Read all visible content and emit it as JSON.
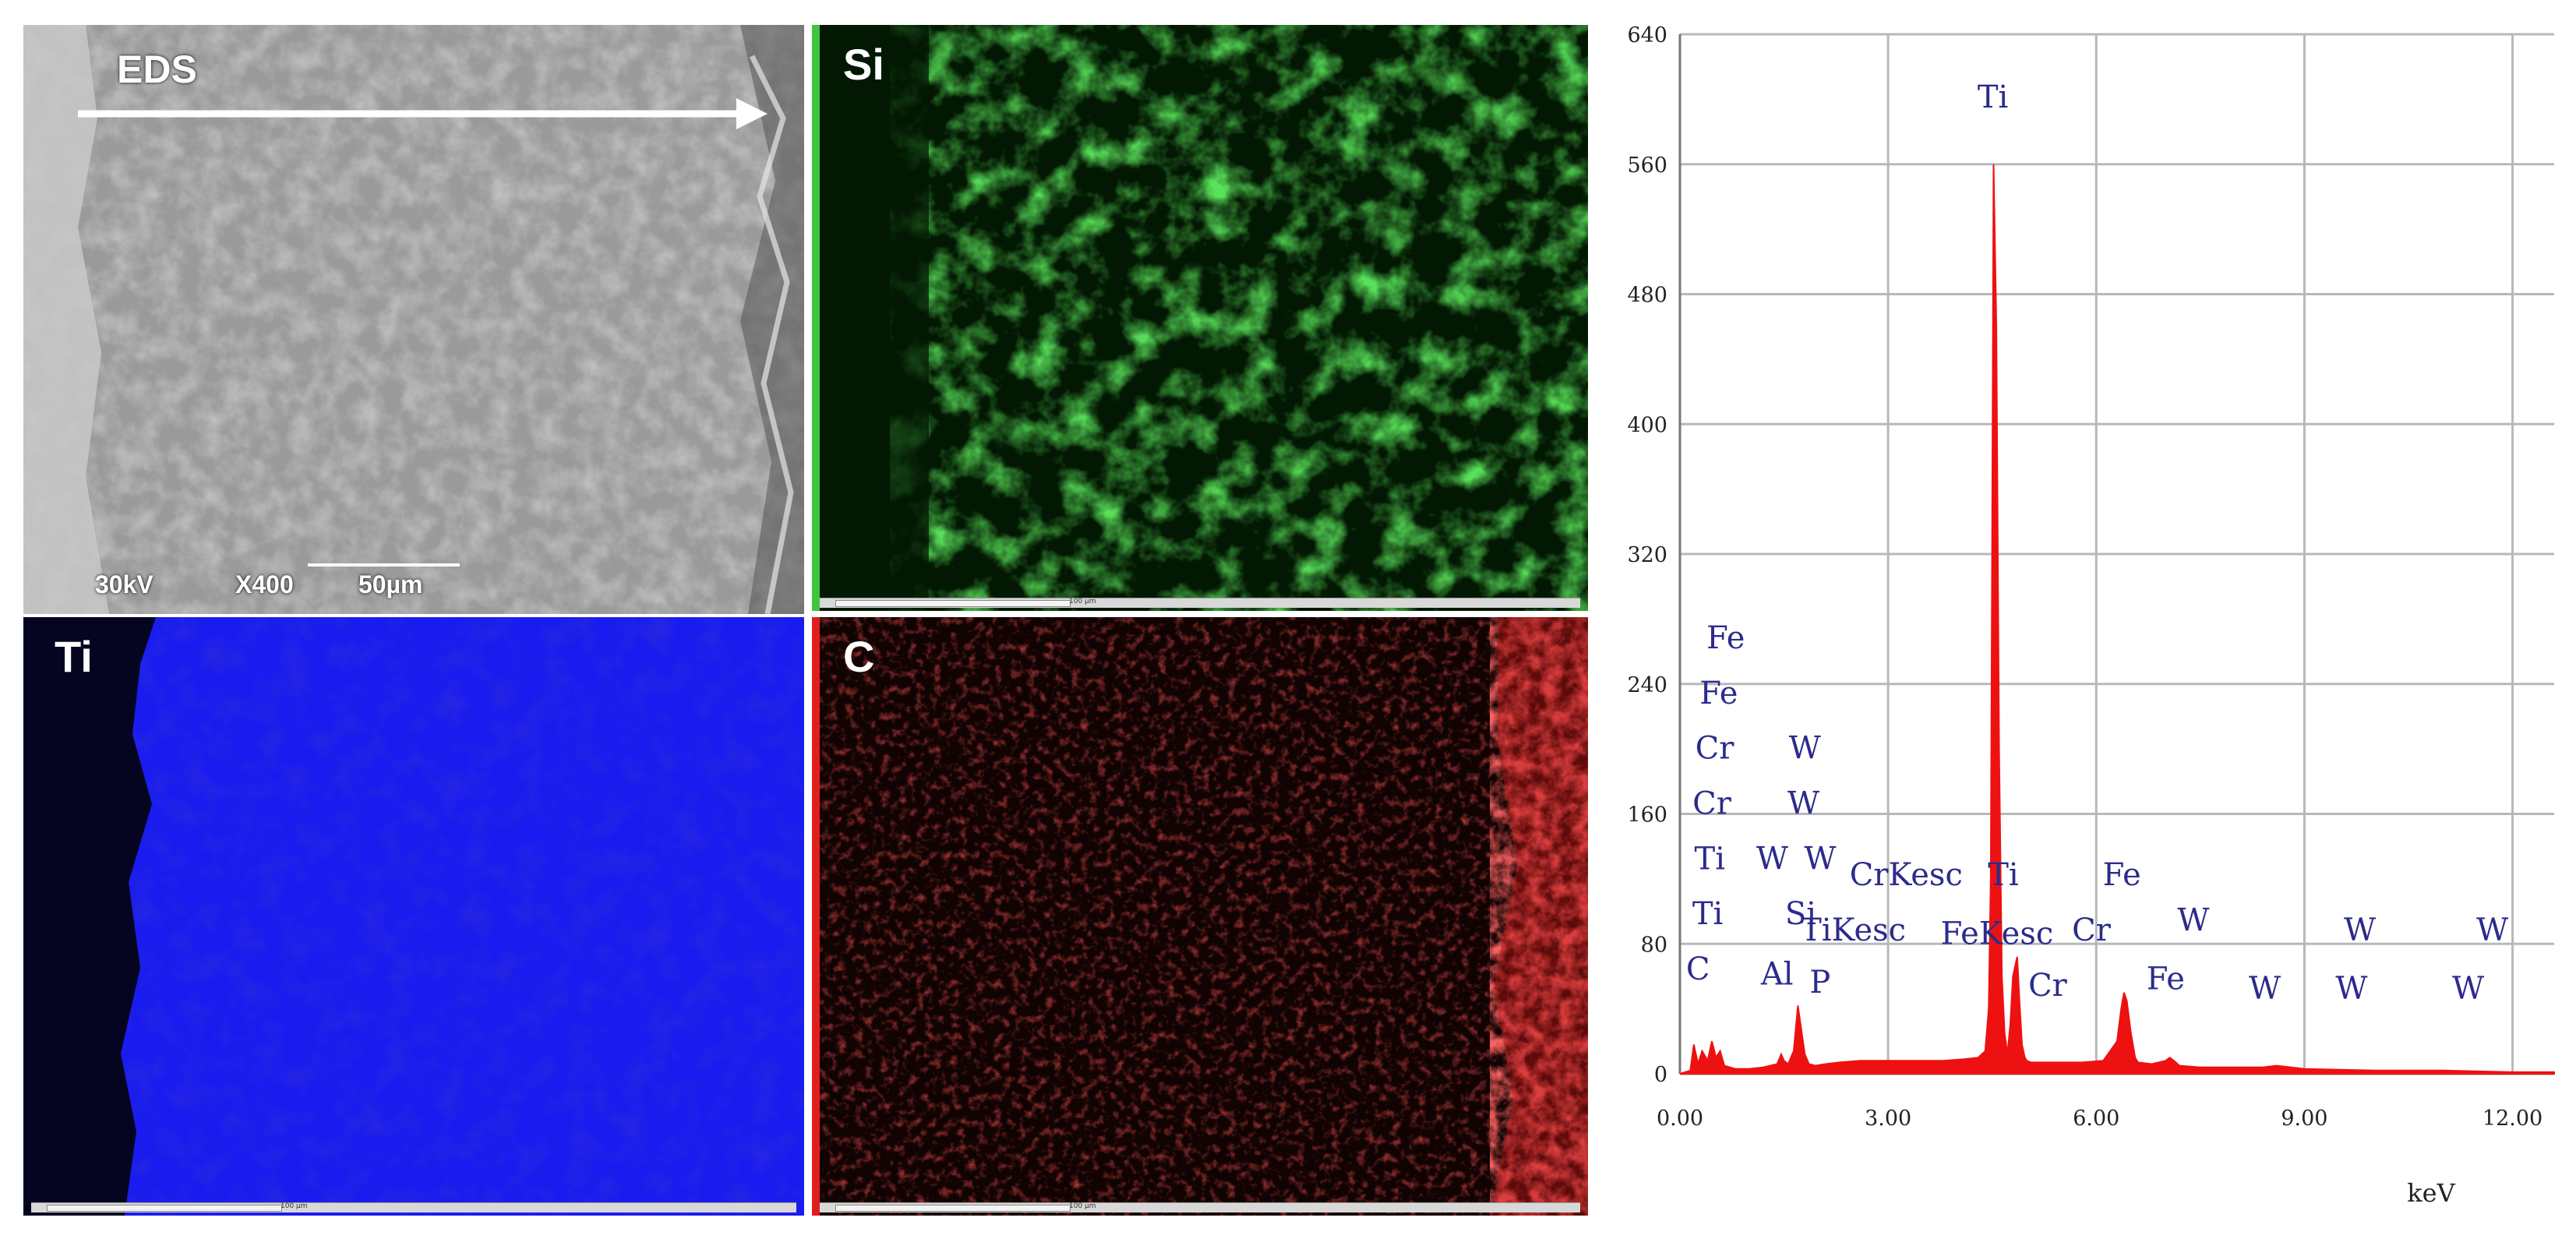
{
  "colors": {
    "si_map": "#3ec43e",
    "ti_map": "#1a1af0",
    "c_map": "#e01e1e",
    "spectrum": "#ee1111",
    "peak_label": "#2b2b8c",
    "grid": "#b8b8b8"
  },
  "panels": {
    "sem": {
      "label": "EDS",
      "voltage": "30kV",
      "magnification": "X400",
      "scale": "50µm"
    },
    "si": {
      "label": "Si",
      "scale_text": "100 µm"
    },
    "ti": {
      "label": "Ti",
      "scale_text": "100 µm"
    },
    "c": {
      "label": "C",
      "scale_text": "100 µm"
    }
  },
  "chart_data": {
    "type": "line",
    "title": "",
    "xlabel": "keV",
    "ylabel": "",
    "xlim": [
      0,
      12.6
    ],
    "ylim": [
      0,
      640
    ],
    "x_ticks": [
      0,
      3,
      6,
      9,
      12
    ],
    "x_tick_labels": [
      "0.00",
      "3.00",
      "6.00",
      "9.00",
      "12.00"
    ],
    "y_ticks": [
      0,
      80,
      160,
      240,
      320,
      400,
      480,
      560,
      640
    ],
    "y_tick_labels": [
      "0",
      "80",
      "160",
      "240",
      "320",
      "400",
      "480",
      "560",
      "640"
    ],
    "grid": true,
    "series": [
      {
        "x": [
          0.0,
          0.15,
          0.2,
          0.26,
          0.32,
          0.4,
          0.46,
          0.52,
          0.58,
          0.64,
          0.72,
          0.8,
          1.0,
          1.2,
          1.4,
          1.46,
          1.5,
          1.56,
          1.64,
          1.7,
          1.74,
          1.8,
          1.86,
          1.95,
          2.1,
          2.3,
          2.6,
          3.0,
          3.4,
          3.8,
          4.1,
          4.3,
          4.4,
          4.45,
          4.48,
          4.5,
          4.52,
          4.56,
          4.6,
          4.64,
          4.68,
          4.72,
          4.76,
          4.8,
          4.86,
          4.9,
          4.93,
          4.97,
          5.0,
          5.06,
          5.2,
          5.5,
          5.8,
          6.1,
          6.3,
          6.36,
          6.4,
          6.44,
          6.5,
          6.56,
          6.6,
          6.8,
          7.0,
          7.06,
          7.12,
          7.2,
          7.5,
          8.0,
          8.4,
          8.6,
          9.0,
          10.0,
          11.0,
          12.0,
          12.6
        ],
        "y": [
          0,
          2,
          18,
          6,
          14,
          8,
          20,
          10,
          14,
          5,
          4,
          3,
          3,
          4,
          6,
          12,
          8,
          6,
          14,
          42,
          30,
          12,
          6,
          5,
          6,
          7,
          8,
          8,
          8,
          8,
          9,
          10,
          14,
          40,
          120,
          330,
          560,
          460,
          200,
          60,
          25,
          12,
          30,
          60,
          72,
          40,
          18,
          10,
          8,
          7,
          7,
          7,
          7,
          8,
          20,
          40,
          50,
          45,
          25,
          10,
          7,
          6,
          8,
          10,
          8,
          5,
          4,
          4,
          4,
          5,
          3,
          2,
          2,
          1,
          1
        ]
      }
    ],
    "annotations": [
      {
        "text": "Ti",
        "x": 4.51,
        "y": 595
      },
      {
        "text": "Fe",
        "x": 0.66,
        "y": 262
      },
      {
        "text": "Fe",
        "x": 0.56,
        "y": 228
      },
      {
        "text": "Cr",
        "x": 0.5,
        "y": 194
      },
      {
        "text": "Cr",
        "x": 0.46,
        "y": 160
      },
      {
        "text": "Ti",
        "x": 0.43,
        "y": 126
      },
      {
        "text": "Ti",
        "x": 0.4,
        "y": 92
      },
      {
        "text": "C",
        "x": 0.26,
        "y": 58
      },
      {
        "text": "W",
        "x": 1.8,
        "y": 194
      },
      {
        "text": "W",
        "x": 1.78,
        "y": 160
      },
      {
        "text": "W",
        "x": 1.33,
        "y": 126
      },
      {
        "text": "W",
        "x": 2.02,
        "y": 126
      },
      {
        "text": "Si",
        "x": 1.74,
        "y": 92
      },
      {
        "text": "Al",
        "x": 1.4,
        "y": 55
      },
      {
        "text": "P",
        "x": 2.02,
        "y": 50
      },
      {
        "text": "CrKesc",
        "x": 3.26,
        "y": 116
      },
      {
        "text": "TiKesc",
        "x": 2.5,
        "y": 82
      },
      {
        "text": "Ti",
        "x": 4.66,
        "y": 116
      },
      {
        "text": "FeKesc",
        "x": 4.57,
        "y": 80
      },
      {
        "text": "Cr",
        "x": 5.3,
        "y": 48
      },
      {
        "text": "Cr",
        "x": 5.93,
        "y": 82
      },
      {
        "text": "Fe",
        "x": 6.37,
        "y": 116
      },
      {
        "text": "Fe",
        "x": 7.0,
        "y": 52
      },
      {
        "text": "W",
        "x": 7.4,
        "y": 88
      },
      {
        "text": "W",
        "x": 8.43,
        "y": 46
      },
      {
        "text": "W",
        "x": 9.8,
        "y": 82
      },
      {
        "text": "W",
        "x": 9.68,
        "y": 46
      },
      {
        "text": "W",
        "x": 11.71,
        "y": 82
      },
      {
        "text": "W",
        "x": 11.36,
        "y": 46
      }
    ]
  }
}
